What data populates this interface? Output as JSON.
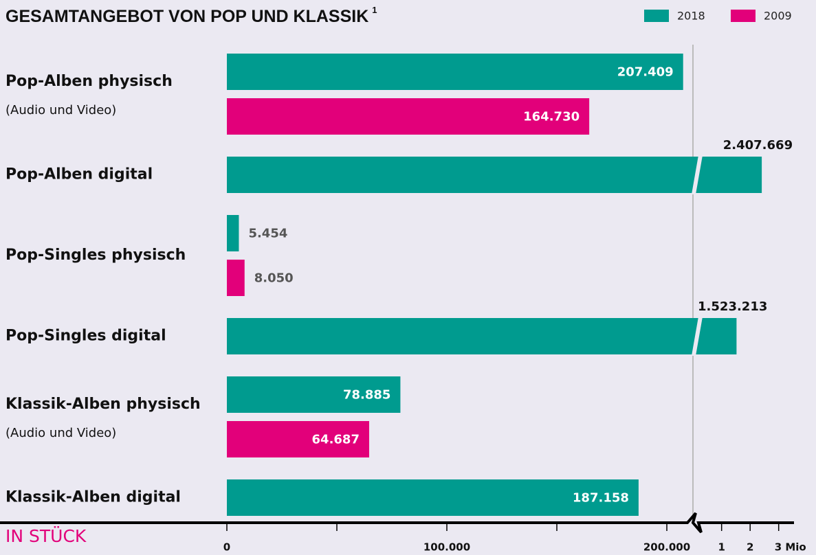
{
  "chart_data": {
    "type": "bar",
    "orientation": "horizontal",
    "title": "GESAMTANGEBOT VON POP UND KLASSIK",
    "title_footnote_mark": "1",
    "categories": [
      "Pop-Alben physisch",
      "Pop-Alben digital",
      "Pop-Singles physisch",
      "Pop-Singles digital",
      "Klassik-Alben physisch",
      "Klassik-Alben digital"
    ],
    "category_notes": [
      "(Audio und Video)",
      null,
      null,
      null,
      "(Audio und Video)",
      null
    ],
    "series": [
      {
        "name": "2018",
        "color": "#009b8f",
        "values": [
          207409,
          2407669,
          5454,
          1523213,
          78885,
          187158
        ],
        "value_labels": [
          "207.409",
          "2.407.669",
          "5.454",
          "1.523.213",
          "78.885",
          "187.158"
        ]
      },
      {
        "name": "2009",
        "color": "#e2007a",
        "values": [
          164730,
          null,
          8050,
          null,
          64687,
          null
        ],
        "value_labels": [
          "164.730",
          null,
          "8.050",
          null,
          "64.687",
          null
        ]
      }
    ],
    "x_axis_label": "IN STÜCK",
    "xlim": [
      0,
      3200000
    ],
    "axis_break": 212500,
    "xticks": [
      0,
      {
        "value": 100000,
        "label": "100.000"
      },
      {
        "value": 200000,
        "label": "200.000"
      },
      {
        "value": 1000000,
        "label": "1"
      },
      {
        "value": 2000000,
        "label": "2"
      },
      {
        "value": 3000000,
        "label": "3 Mio"
      }
    ],
    "minor_xticks": [
      50000,
      150000
    ],
    "legend": "top-right"
  }
}
